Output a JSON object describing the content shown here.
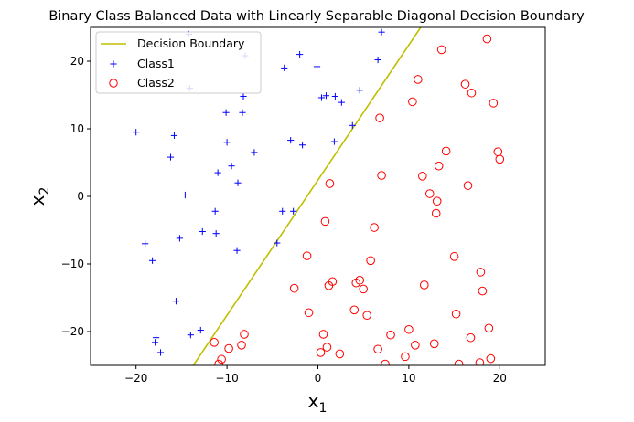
{
  "chart_data": {
    "type": "scatter",
    "title": "Binary Class Balanced Data with Linearly Separable Diagonal Decision Boundary",
    "xlabel": {
      "base": "x",
      "sub": "1"
    },
    "ylabel": {
      "base": "x",
      "sub": "2"
    },
    "xlim": [
      -25,
      25
    ],
    "ylim": [
      -25,
      25
    ],
    "xticks": [
      -20,
      -10,
      0,
      10,
      20
    ],
    "yticks": [
      -20,
      -10,
      0,
      10,
      20
    ],
    "grid": false,
    "legend": "top-left",
    "colors": {
      "boundary": "#bfbf00",
      "class1": "#0000ff",
      "class2": "#ff0000"
    },
    "decision_boundary": {
      "name": "Decision Boundary",
      "points": [
        [
          -13.7,
          -25
        ],
        [
          11.3,
          25
        ]
      ]
    },
    "series": [
      {
        "name": "Class1",
        "marker": "plus",
        "points": [
          [
            -14.2,
            24.0
          ],
          [
            -14.1,
            16.0
          ],
          [
            -8.0,
            20.8
          ],
          [
            -8.2,
            14.8
          ],
          [
            -10.1,
            12.4
          ],
          [
            -8.3,
            12.4
          ],
          [
            -10.0,
            8.0
          ],
          [
            -7.0,
            6.5
          ],
          [
            -9.5,
            4.5
          ],
          [
            -11.0,
            3.5
          ],
          [
            -8.8,
            2.0
          ],
          [
            -20.0,
            9.5
          ],
          [
            -15.8,
            9.0
          ],
          [
            -16.2,
            5.8
          ],
          [
            -14.6,
            0.2
          ],
          [
            -11.3,
            -2.2
          ],
          [
            -11.2,
            -5.5
          ],
          [
            -12.7,
            -5.2
          ],
          [
            -15.2,
            -6.2
          ],
          [
            -19.0,
            -7.0
          ],
          [
            -8.9,
            -8.0
          ],
          [
            -18.2,
            -9.5
          ],
          [
            -15.6,
            -15.5
          ],
          [
            -12.9,
            -19.8
          ],
          [
            -14.0,
            -20.5
          ],
          [
            -17.8,
            -20.9
          ],
          [
            -17.9,
            -21.6
          ],
          [
            -17.3,
            -23.1
          ],
          [
            -4.5,
            -6.9
          ],
          [
            -3.9,
            -2.2
          ],
          [
            -2.7,
            -2.2
          ],
          [
            -3.0,
            8.3
          ],
          [
            -1.7,
            7.6
          ],
          [
            -3.7,
            19.0
          ],
          [
            -2.0,
            21.0
          ],
          [
            -0.1,
            19.2
          ],
          [
            0.4,
            14.6
          ],
          [
            0.9,
            14.9
          ],
          [
            1.9,
            14.8
          ],
          [
            2.6,
            13.9
          ],
          [
            1.8,
            8.1
          ],
          [
            3.8,
            10.5
          ],
          [
            4.6,
            15.7
          ],
          [
            6.6,
            20.2
          ],
          [
            7.0,
            24.3
          ]
        ]
      },
      {
        "name": "Class2",
        "marker": "circle",
        "points": [
          [
            18.6,
            23.3
          ],
          [
            13.6,
            21.7
          ],
          [
            16.2,
            16.6
          ],
          [
            11.0,
            17.3
          ],
          [
            16.9,
            15.3
          ],
          [
            19.3,
            13.8
          ],
          [
            10.4,
            14.0
          ],
          [
            6.8,
            11.6
          ],
          [
            14.1,
            6.7
          ],
          [
            19.8,
            6.6
          ],
          [
            20.0,
            5.5
          ],
          [
            13.3,
            4.5
          ],
          [
            11.5,
            3.0
          ],
          [
            7.0,
            3.1
          ],
          [
            16.5,
            1.6
          ],
          [
            12.3,
            0.4
          ],
          [
            13.1,
            -0.7
          ],
          [
            1.3,
            1.9
          ],
          [
            0.8,
            -3.7
          ],
          [
            13.0,
            -2.5
          ],
          [
            6.2,
            -4.6
          ],
          [
            15.0,
            -8.9
          ],
          [
            -1.2,
            -8.8
          ],
          [
            5.8,
            -9.5
          ],
          [
            17.9,
            -11.2
          ],
          [
            -2.6,
            -13.6
          ],
          [
            1.2,
            -13.2
          ],
          [
            1.6,
            -12.6
          ],
          [
            4.2,
            -12.8
          ],
          [
            4.6,
            -12.4
          ],
          [
            5.0,
            -13.7
          ],
          [
            11.7,
            -13.1
          ],
          [
            18.1,
            -14.0
          ],
          [
            -1.0,
            -17.2
          ],
          [
            4.0,
            -16.8
          ],
          [
            5.4,
            -17.6
          ],
          [
            15.2,
            -17.4
          ],
          [
            -8.1,
            -20.4
          ],
          [
            0.6,
            -20.4
          ],
          [
            8.0,
            -20.5
          ],
          [
            10.0,
            -19.7
          ],
          [
            18.8,
            -19.5
          ],
          [
            16.8,
            -20.9
          ],
          [
            -11.4,
            -21.6
          ],
          [
            -9.8,
            -22.5
          ],
          [
            -8.4,
            -22.0
          ],
          [
            1.0,
            -22.3
          ],
          [
            6.6,
            -22.6
          ],
          [
            10.7,
            -22.0
          ],
          [
            12.8,
            -21.8
          ],
          [
            0.3,
            -23.1
          ],
          [
            2.4,
            -23.3
          ],
          [
            9.6,
            -23.7
          ],
          [
            19.0,
            -24.0
          ],
          [
            -10.6,
            -24.1
          ],
          [
            -10.9,
            -24.8
          ],
          [
            7.4,
            -24.8
          ],
          [
            15.5,
            -24.8
          ],
          [
            17.8,
            -24.6
          ]
        ]
      }
    ]
  }
}
